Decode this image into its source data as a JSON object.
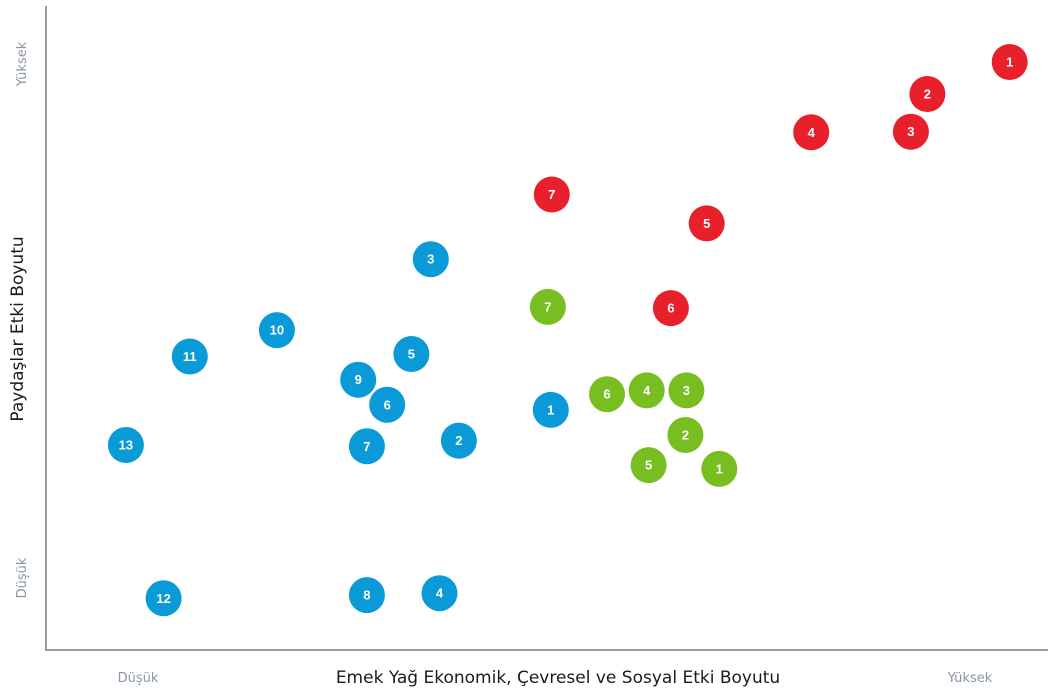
{
  "chart_data": {
    "type": "scatter",
    "xlabel": "Emek Yağ Ekonomik, Çevresel ve Sosyal Etki Boyutu",
    "ylabel": "Paydaşlar Etki Boyutu",
    "x_low_label": "Düşük",
    "x_high_label": "Yüksek",
    "y_low_label": "Düşük",
    "y_high_label": "Yüksek",
    "xlim": [
      0,
      100
    ],
    "ylim": [
      0,
      100
    ],
    "grid": false,
    "series": [
      {
        "color": "#0a9ad8",
        "points": [
          {
            "label": "1",
            "x": 50.5,
            "y": 37.6
          },
          {
            "label": "2",
            "x": 41.0,
            "y": 32.7
          },
          {
            "label": "3",
            "x": 38.1,
            "y": 61.6
          },
          {
            "label": "4",
            "x": 39.0,
            "y": 8.4
          },
          {
            "label": "5",
            "x": 36.1,
            "y": 46.5
          },
          {
            "label": "6",
            "x": 33.6,
            "y": 38.4
          },
          {
            "label": "7",
            "x": 31.5,
            "y": 31.8
          },
          {
            "label": "8",
            "x": 31.5,
            "y": 8.1
          },
          {
            "label": "9",
            "x": 30.6,
            "y": 42.4
          },
          {
            "label": "10",
            "x": 22.2,
            "y": 50.3
          },
          {
            "label": "11",
            "x": 13.2,
            "y": 46.1
          },
          {
            "label": "12",
            "x": 10.5,
            "y": 7.6
          },
          {
            "label": "13",
            "x": 6.6,
            "y": 32.0
          }
        ]
      },
      {
        "color": "#78be20",
        "points": [
          {
            "label": "1",
            "x": 67.9,
            "y": 28.2
          },
          {
            "label": "2",
            "x": 64.4,
            "y": 33.6
          },
          {
            "label": "3",
            "x": 64.5,
            "y": 40.7
          },
          {
            "label": "4",
            "x": 60.4,
            "y": 40.7
          },
          {
            "label": "5",
            "x": 60.6,
            "y": 28.8
          },
          {
            "label": "6",
            "x": 56.3,
            "y": 40.1
          },
          {
            "label": "7",
            "x": 50.2,
            "y": 54.0
          }
        ]
      },
      {
        "color": "#e8202c",
        "points": [
          {
            "label": "1",
            "x": 97.9,
            "y": 93.0
          },
          {
            "label": "2",
            "x": 89.4,
            "y": 87.9
          },
          {
            "label": "3",
            "x": 87.7,
            "y": 81.9
          },
          {
            "label": "4",
            "x": 77.4,
            "y": 81.8
          },
          {
            "label": "5",
            "x": 66.6,
            "y": 67.3
          },
          {
            "label": "6",
            "x": 62.9,
            "y": 53.8
          },
          {
            "label": "7",
            "x": 50.6,
            "y": 71.9
          }
        ]
      }
    ]
  }
}
